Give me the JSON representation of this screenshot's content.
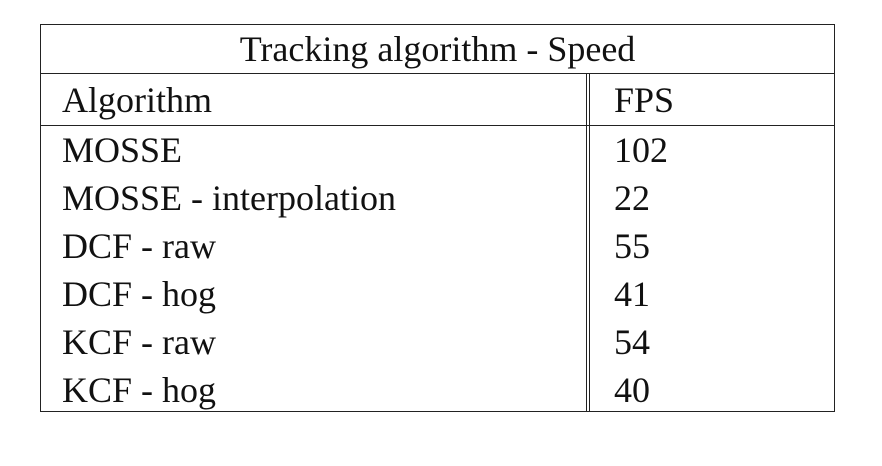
{
  "table": {
    "title": "Tracking algorithm - Speed",
    "headers": [
      "Algorithm",
      "FPS"
    ],
    "rows": [
      {
        "algorithm": "MOSSE",
        "fps": "102"
      },
      {
        "algorithm": "MOSSE - interpolation",
        "fps": "22"
      },
      {
        "algorithm": "DCF - raw",
        "fps": "55"
      },
      {
        "algorithm": "DCF - hog",
        "fps": "41"
      },
      {
        "algorithm": "KCF - raw",
        "fps": "54"
      },
      {
        "algorithm": "KCF - hog",
        "fps": "40"
      }
    ]
  }
}
